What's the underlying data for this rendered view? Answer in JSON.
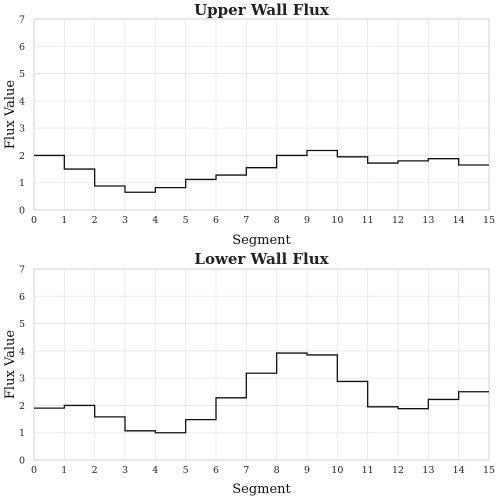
{
  "chart_data": [
    {
      "type": "line",
      "drawstyle": "steps-post",
      "title": "Upper Wall Flux",
      "xlabel": "Segment",
      "ylabel": "Flux Value",
      "xlim": [
        0,
        15
      ],
      "ylim": [
        0,
        7
      ],
      "x_ticks": [
        0,
        1,
        2,
        3,
        4,
        5,
        6,
        7,
        8,
        9,
        10,
        11,
        12,
        13,
        14,
        15
      ],
      "y_ticks": [
        0,
        1,
        2,
        3,
        4,
        5,
        6,
        7
      ],
      "grid": true,
      "color": "#111111",
      "x": [
        0,
        1,
        2,
        3,
        4,
        5,
        6,
        7,
        8,
        9,
        10,
        11,
        12,
        13,
        14
      ],
      "values": [
        2.0,
        1.5,
        0.88,
        0.65,
        0.82,
        1.12,
        1.28,
        1.55,
        2.0,
        2.18,
        1.95,
        1.72,
        1.8,
        1.88,
        1.65
      ]
    },
    {
      "type": "line",
      "drawstyle": "steps-post",
      "title": "Lower Wall Flux",
      "xlabel": "Segment",
      "ylabel": "Flux Value",
      "xlim": [
        0,
        15
      ],
      "ylim": [
        0,
        7
      ],
      "x_ticks": [
        0,
        1,
        2,
        3,
        4,
        5,
        6,
        7,
        8,
        9,
        10,
        11,
        12,
        13,
        14,
        15
      ],
      "y_ticks": [
        0,
        1,
        2,
        3,
        4,
        5,
        6,
        7
      ],
      "grid": true,
      "color": "#111111",
      "x": [
        0,
        1,
        2,
        3,
        4,
        5,
        6,
        7,
        8,
        9,
        10,
        11,
        12,
        13,
        14
      ],
      "values": [
        1.9,
        2.0,
        1.58,
        1.07,
        1.0,
        1.48,
        2.28,
        3.18,
        3.92,
        3.85,
        2.88,
        1.95,
        1.88,
        2.22,
        2.5
      ]
    }
  ]
}
